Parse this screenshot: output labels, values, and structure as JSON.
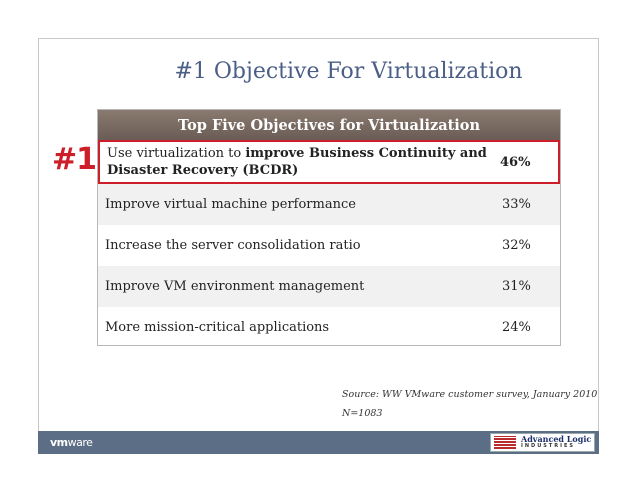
{
  "slide": {
    "title": "#1 Objective For Virtualization",
    "badge": "#1"
  },
  "table": {
    "header": "Top Five Objectives for Virtualization",
    "rows": [
      {
        "label_plain": "Use virtualization to ",
        "label_bold": "improve Business Continuity and Disaster Recovery (BCDR)",
        "value": "46%"
      },
      {
        "label": "Improve virtual machine performance",
        "value": "33%"
      },
      {
        "label": "Increase the server consolidation ratio",
        "value": "32%"
      },
      {
        "label": "Improve VM environment management",
        "value": "31%"
      },
      {
        "label": "More mission-critical applications",
        "value": "24%"
      }
    ]
  },
  "source": {
    "line1": "Source:  WW VMware customer survey, January 2010",
    "line2": "N=1083"
  },
  "footer": {
    "vmware_logo_vm": "vm",
    "vmware_logo_ware": "ware",
    "ali_logo_top": "Advanced Logic",
    "ali_logo_bottom": "INDUSTRIES",
    "colors": {
      "bar": "#5b6e86",
      "accent": "#cc1f2a"
    }
  }
}
